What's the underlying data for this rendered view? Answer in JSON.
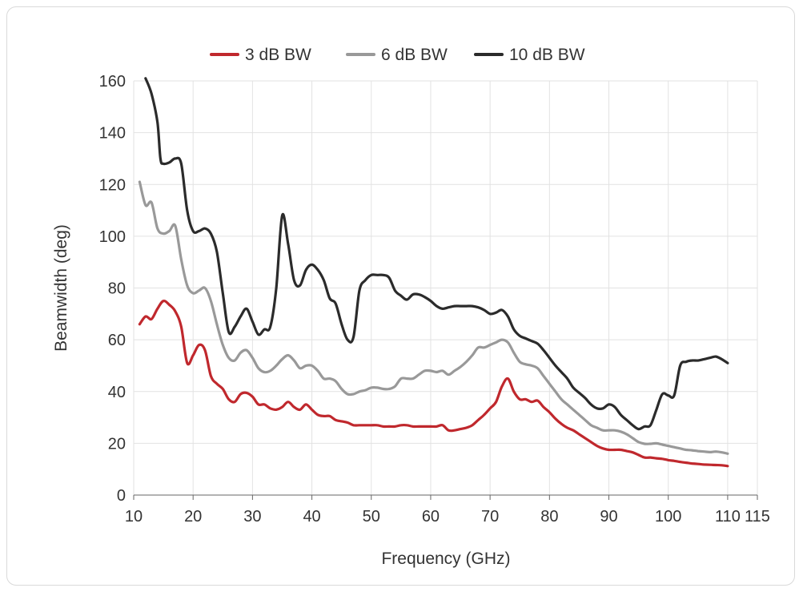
{
  "chart_data": {
    "type": "line",
    "title": "",
    "xlabel": "Frequency (GHz)",
    "ylabel": "Beamwidth (deg)",
    "xlim": [
      10,
      115
    ],
    "ylim": [
      0,
      160
    ],
    "x_ticks": [
      10,
      20,
      30,
      40,
      50,
      60,
      70,
      80,
      90,
      100,
      110,
      115
    ],
    "y_ticks": [
      0,
      20,
      40,
      60,
      80,
      100,
      120,
      140,
      160
    ],
    "grid": true,
    "legend_position": "top-center",
    "series": [
      {
        "name": "3 dB BW",
        "color": "#c0282d",
        "points": [
          [
            11,
            66
          ],
          [
            12,
            69
          ],
          [
            13,
            68
          ],
          [
            14,
            72
          ],
          [
            15,
            75
          ],
          [
            16,
            73.5
          ],
          [
            17,
            71
          ],
          [
            18,
            65
          ],
          [
            19,
            51
          ],
          [
            20,
            54
          ],
          [
            21,
            58
          ],
          [
            22,
            56
          ],
          [
            23,
            46
          ],
          [
            24,
            43
          ],
          [
            25,
            41
          ],
          [
            26,
            37
          ],
          [
            27,
            36
          ],
          [
            28,
            39
          ],
          [
            29,
            39.5
          ],
          [
            30,
            38
          ],
          [
            31,
            35
          ],
          [
            32,
            35
          ],
          [
            33,
            33.5
          ],
          [
            34,
            33
          ],
          [
            35,
            34
          ],
          [
            36,
            36
          ],
          [
            37,
            34
          ],
          [
            38,
            33
          ],
          [
            39,
            35
          ],
          [
            40,
            33
          ],
          [
            41,
            31
          ],
          [
            42,
            30.5
          ],
          [
            43,
            30.5
          ],
          [
            44,
            29
          ],
          [
            45,
            28.5
          ],
          [
            46,
            28
          ],
          [
            47,
            27
          ],
          [
            48,
            27
          ],
          [
            49,
            27
          ],
          [
            50,
            27
          ],
          [
            51,
            27
          ],
          [
            52,
            26.5
          ],
          [
            53,
            26.5
          ],
          [
            54,
            26.5
          ],
          [
            55,
            27
          ],
          [
            56,
            27
          ],
          [
            57,
            26.5
          ],
          [
            58,
            26.5
          ],
          [
            59,
            26.5
          ],
          [
            60,
            26.5
          ],
          [
            61,
            26.5
          ],
          [
            62,
            27
          ],
          [
            63,
            25
          ],
          [
            64,
            25
          ],
          [
            65,
            25.5
          ],
          [
            66,
            26
          ],
          [
            67,
            27
          ],
          [
            68,
            29
          ],
          [
            69,
            31
          ],
          [
            70,
            33.5
          ],
          [
            71,
            36
          ],
          [
            72,
            42
          ],
          [
            73,
            45
          ],
          [
            74,
            40
          ],
          [
            75,
            37
          ],
          [
            76,
            37
          ],
          [
            77,
            36
          ],
          [
            78,
            36.5
          ],
          [
            79,
            34
          ],
          [
            80,
            32
          ],
          [
            81,
            29.5
          ],
          [
            82,
            27.5
          ],
          [
            83,
            26
          ],
          [
            84,
            25
          ],
          [
            85,
            23.5
          ],
          [
            86,
            22
          ],
          [
            87,
            20.5
          ],
          [
            88,
            19
          ],
          [
            89,
            18
          ],
          [
            90,
            17.5
          ],
          [
            91,
            17.5
          ],
          [
            92,
            17.5
          ],
          [
            93,
            17
          ],
          [
            94,
            16.5
          ],
          [
            95,
            15.5
          ],
          [
            96,
            14.5
          ],
          [
            97,
            14.5
          ],
          [
            98,
            14.2
          ],
          [
            99,
            14
          ],
          [
            100,
            13.5
          ],
          [
            101,
            13.2
          ],
          [
            102,
            12.8
          ],
          [
            103,
            12.5
          ],
          [
            104,
            12.2
          ],
          [
            105,
            12
          ],
          [
            106,
            11.8
          ],
          [
            107,
            11.7
          ],
          [
            108,
            11.6
          ],
          [
            109,
            11.5
          ],
          [
            110,
            11.2
          ]
        ]
      },
      {
        "name": "6 dB BW",
        "color": "#999999",
        "points": [
          [
            11,
            121
          ],
          [
            12,
            112
          ],
          [
            13,
            113
          ],
          [
            14,
            103
          ],
          [
            15,
            101
          ],
          [
            16,
            102
          ],
          [
            17,
            104
          ],
          [
            18,
            91
          ],
          [
            19,
            81
          ],
          [
            20,
            78
          ],
          [
            21,
            79
          ],
          [
            22,
            80
          ],
          [
            23,
            75
          ],
          [
            24,
            66
          ],
          [
            25,
            58
          ],
          [
            26,
            53
          ],
          [
            27,
            52
          ],
          [
            28,
            55
          ],
          [
            29,
            56
          ],
          [
            30,
            53
          ],
          [
            31,
            49
          ],
          [
            32,
            47.5
          ],
          [
            33,
            48
          ],
          [
            34,
            50
          ],
          [
            35,
            52.5
          ],
          [
            36,
            54
          ],
          [
            37,
            52
          ],
          [
            38,
            49
          ],
          [
            39,
            50
          ],
          [
            40,
            50
          ],
          [
            41,
            48
          ],
          [
            42,
            45
          ],
          [
            43,
            45
          ],
          [
            44,
            44
          ],
          [
            45,
            41
          ],
          [
            46,
            39
          ],
          [
            47,
            39
          ],
          [
            48,
            40
          ],
          [
            49,
            40.5
          ],
          [
            50,
            41.5
          ],
          [
            51,
            41.5
          ],
          [
            52,
            41
          ],
          [
            53,
            41
          ],
          [
            54,
            42
          ],
          [
            55,
            45
          ],
          [
            56,
            45
          ],
          [
            57,
            45
          ],
          [
            58,
            46.5
          ],
          [
            59,
            48
          ],
          [
            60,
            48
          ],
          [
            61,
            47.5
          ],
          [
            62,
            48
          ],
          [
            63,
            46.5
          ],
          [
            64,
            48
          ],
          [
            65,
            49.5
          ],
          [
            66,
            51.5
          ],
          [
            67,
            54
          ],
          [
            68,
            57
          ],
          [
            69,
            57
          ],
          [
            70,
            58
          ],
          [
            71,
            59
          ],
          [
            72,
            60
          ],
          [
            73,
            59
          ],
          [
            74,
            55
          ],
          [
            75,
            51.5
          ],
          [
            76,
            50.5
          ],
          [
            77,
            50
          ],
          [
            78,
            49
          ],
          [
            79,
            46
          ],
          [
            80,
            43
          ],
          [
            81,
            40
          ],
          [
            82,
            37
          ],
          [
            83,
            35
          ],
          [
            84,
            33
          ],
          [
            85,
            31
          ],
          [
            86,
            29
          ],
          [
            87,
            27
          ],
          [
            88,
            26
          ],
          [
            89,
            25
          ],
          [
            90,
            25
          ],
          [
            91,
            25
          ],
          [
            92,
            24.5
          ],
          [
            93,
            23.5
          ],
          [
            94,
            22
          ],
          [
            95,
            20.5
          ],
          [
            96,
            19.8
          ],
          [
            97,
            19.8
          ],
          [
            98,
            20
          ],
          [
            99,
            19.5
          ],
          [
            100,
            19
          ],
          [
            101,
            18.5
          ],
          [
            102,
            18
          ],
          [
            103,
            17.5
          ],
          [
            104,
            17.3
          ],
          [
            105,
            17
          ],
          [
            106,
            16.8
          ],
          [
            107,
            16.6
          ],
          [
            108,
            16.8
          ],
          [
            109,
            16.5
          ],
          [
            110,
            16
          ]
        ]
      },
      {
        "name": "10 dB BW",
        "color": "#2b2b2b",
        "points": [
          [
            12,
            161
          ],
          [
            13,
            155
          ],
          [
            14,
            144
          ],
          [
            14.5,
            130
          ],
          [
            15,
            128
          ],
          [
            16,
            128.5
          ],
          [
            17,
            130
          ],
          [
            18,
            128
          ],
          [
            19,
            110
          ],
          [
            20,
            102
          ],
          [
            21,
            102
          ],
          [
            22,
            103
          ],
          [
            23,
            101
          ],
          [
            24,
            94
          ],
          [
            25,
            78
          ],
          [
            26,
            63
          ],
          [
            27,
            65
          ],
          [
            28,
            69
          ],
          [
            29,
            72
          ],
          [
            30,
            67
          ],
          [
            31,
            62
          ],
          [
            32,
            64
          ],
          [
            33,
            65
          ],
          [
            34,
            80
          ],
          [
            35,
            108
          ],
          [
            36,
            97
          ],
          [
            37,
            83
          ],
          [
            38,
            81
          ],
          [
            39,
            87
          ],
          [
            40,
            89
          ],
          [
            41,
            87
          ],
          [
            42,
            83
          ],
          [
            43,
            76
          ],
          [
            44,
            74
          ],
          [
            45,
            66
          ],
          [
            46,
            60
          ],
          [
            47,
            61
          ],
          [
            48,
            79
          ],
          [
            49,
            83
          ],
          [
            50,
            85
          ],
          [
            51,
            85
          ],
          [
            52,
            85
          ],
          [
            53,
            84
          ],
          [
            54,
            79
          ],
          [
            55,
            77
          ],
          [
            56,
            75.5
          ],
          [
            57,
            77.5
          ],
          [
            58,
            77.5
          ],
          [
            59,
            76.5
          ],
          [
            60,
            75
          ],
          [
            61,
            73
          ],
          [
            62,
            72
          ],
          [
            63,
            72.5
          ],
          [
            64,
            73
          ],
          [
            65,
            73
          ],
          [
            66,
            73
          ],
          [
            67,
            73
          ],
          [
            68,
            72.5
          ],
          [
            69,
            71.5
          ],
          [
            70,
            70
          ],
          [
            71,
            70.5
          ],
          [
            72,
            71.5
          ],
          [
            73,
            69
          ],
          [
            74,
            64
          ],
          [
            75,
            61.5
          ],
          [
            76,
            60.5
          ],
          [
            77,
            59.5
          ],
          [
            78,
            58.5
          ],
          [
            79,
            56
          ],
          [
            80,
            53
          ],
          [
            81,
            50
          ],
          [
            82,
            47.5
          ],
          [
            83,
            45
          ],
          [
            84,
            41.5
          ],
          [
            85,
            39.5
          ],
          [
            86,
            37.5
          ],
          [
            87,
            35
          ],
          [
            88,
            33.5
          ],
          [
            89,
            33.5
          ],
          [
            90,
            35
          ],
          [
            91,
            34
          ],
          [
            92,
            31
          ],
          [
            93,
            29
          ],
          [
            94,
            27
          ],
          [
            95,
            25.5
          ],
          [
            96,
            26.5
          ],
          [
            97,
            27
          ],
          [
            98,
            33
          ],
          [
            99,
            39
          ],
          [
            100,
            38.5
          ],
          [
            101,
            38.5
          ],
          [
            102,
            50
          ],
          [
            103,
            51.5
          ],
          [
            104,
            52
          ],
          [
            105,
            52
          ],
          [
            106,
            52.5
          ],
          [
            107,
            53
          ],
          [
            108,
            53.5
          ],
          [
            109,
            52.5
          ],
          [
            110,
            51
          ]
        ]
      }
    ]
  }
}
